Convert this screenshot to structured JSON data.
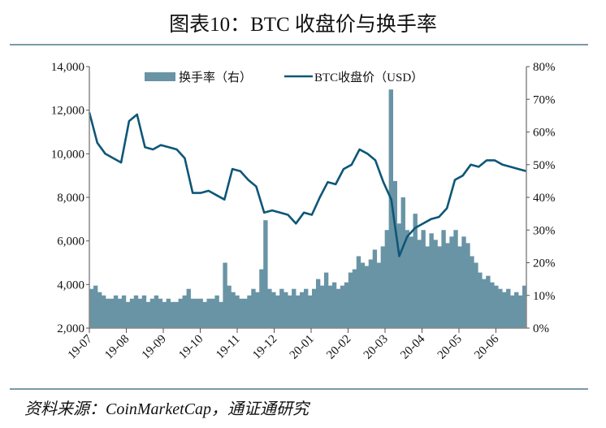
{
  "title": "图表10：BTC 收盘价与换手率",
  "source": "资料来源：CoinMarketCap，通证通研究",
  "chart_data": {
    "type": "bar+line",
    "title": "BTC 收盘价与换手率",
    "legend": [
      "换手率（右）",
      "BTC收盘价（USD）"
    ],
    "legend_position": "top-center",
    "x_ticks": [
      "19-07",
      "19-08",
      "19-09",
      "19-10",
      "19-11",
      "19-12",
      "20-01",
      "20-02",
      "20-03",
      "20-04",
      "20-05",
      "20-06"
    ],
    "y_left": {
      "range": [
        2000,
        14000
      ],
      "ticks": [
        "2,000",
        "4,000",
        "6,000",
        "8,000",
        "10,000",
        "12,000",
        "14,000"
      ]
    },
    "y_right": {
      "range": [
        0,
        80
      ],
      "ticks": [
        "0%",
        "10%",
        "20%",
        "30%",
        "40%",
        "50%",
        "60%",
        "70%",
        "80%"
      ]
    },
    "colors": {
      "turnover": "#6994a5",
      "price": "#0e5678"
    },
    "series": [
      {
        "name": "BTC收盘价（USD）",
        "axis": "left",
        "type": "line",
        "values": [
          11900,
          10500,
          10000,
          9800,
          9600,
          11500,
          11800,
          10300,
          10200,
          10400,
          10300,
          10200,
          9800,
          8200,
          8200,
          8300,
          8100,
          7900,
          9300,
          9200,
          8800,
          8500,
          7300,
          7400,
          7300,
          7200,
          6800,
          7300,
          7200,
          8000,
          8700,
          8600,
          9300,
          9500,
          10200,
          10000,
          9700,
          8700,
          7900,
          5300,
          6200,
          6600,
          6800,
          7000,
          7100,
          7500,
          8800,
          9000,
          9500,
          9400,
          9700,
          9700,
          9500,
          9400,
          9300,
          9200
        ]
      },
      {
        "name": "换手率（右）",
        "axis": "right",
        "type": "bar",
        "values": [
          12,
          13,
          11,
          10,
          9,
          9,
          10,
          9,
          10,
          8,
          9,
          10,
          9,
          10,
          8,
          9,
          10,
          9,
          8,
          9,
          8,
          8,
          9,
          10,
          12,
          9,
          9,
          9,
          8,
          9,
          9,
          10,
          8,
          20,
          13,
          11,
          10,
          9,
          9,
          10,
          12,
          11,
          18,
          33,
          12,
          11,
          10,
          12,
          11,
          10,
          12,
          10,
          11,
          12,
          10,
          12,
          15,
          13,
          17,
          13,
          14,
          12,
          13,
          14,
          17,
          18,
          22,
          20,
          19,
          21,
          24,
          20,
          25,
          30,
          73,
          45,
          32,
          40,
          30,
          28,
          35,
          27,
          30,
          25,
          29,
          27,
          25,
          30,
          26,
          28,
          30,
          25,
          28,
          26,
          22,
          20,
          17,
          15,
          16,
          14,
          13,
          12,
          11,
          12,
          10,
          11,
          10,
          13
        ]
      }
    ]
  }
}
